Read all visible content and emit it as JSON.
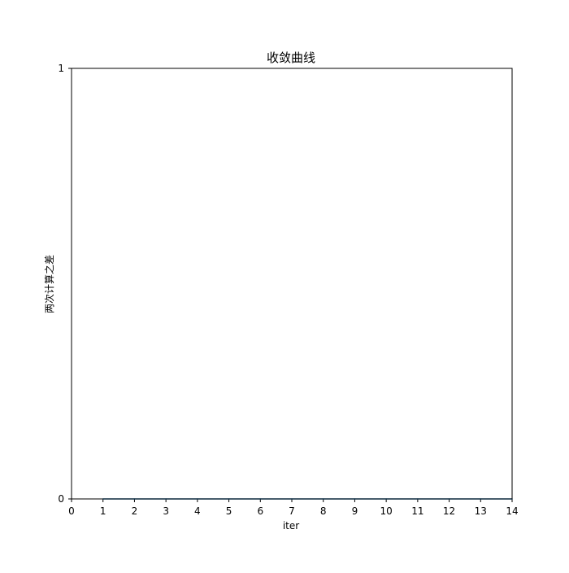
{
  "chart_data": {
    "type": "line",
    "title": "收敛曲线",
    "xlabel": "iter",
    "ylabel": "两次计算之差",
    "xlim": [
      0,
      14
    ],
    "ylim": [
      0,
      1
    ],
    "x_ticks": [
      0,
      1,
      2,
      3,
      4,
      5,
      6,
      7,
      8,
      9,
      10,
      11,
      12,
      13,
      14
    ],
    "y_ticks": [
      0,
      1
    ],
    "x_tick_labels": [
      "0",
      "1",
      "2",
      "3",
      "4",
      "5",
      "6",
      "7",
      "8",
      "9",
      "10",
      "11",
      "12",
      "13",
      "14"
    ],
    "y_tick_labels": [
      "0",
      "1"
    ],
    "grid": false,
    "series": [
      {
        "name": "两次计算之差",
        "color": "#1f77b4",
        "x": [
          1,
          2,
          3,
          4,
          5,
          6,
          7,
          8,
          9,
          10,
          11,
          12,
          13,
          14
        ],
        "values": [
          0,
          0,
          0,
          0,
          0,
          0,
          0,
          0,
          0,
          0,
          0,
          0,
          0,
          0
        ]
      }
    ]
  }
}
